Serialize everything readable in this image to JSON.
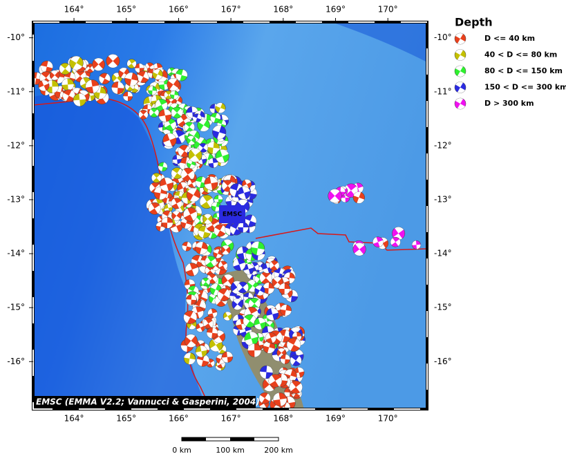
{
  "map": {
    "xlim": [
      163.22,
      170.75
    ],
    "ylim": [
      -9.71,
      -16.88
    ],
    "x_ticks": [
      {
        "value": 164,
        "label": "164°"
      },
      {
        "value": 165,
        "label": "165°"
      },
      {
        "value": 166,
        "label": "166°"
      },
      {
        "value": 167,
        "label": "167°"
      },
      {
        "value": 168,
        "label": "168°"
      },
      {
        "value": 169,
        "label": "169°"
      },
      {
        "value": 170,
        "label": "170°"
      }
    ],
    "y_ticks": [
      {
        "value": -10,
        "label": "-10°"
      },
      {
        "value": -11,
        "label": "-11°"
      },
      {
        "value": -12,
        "label": "-12°"
      },
      {
        "value": -13,
        "label": "-13°"
      },
      {
        "value": -14,
        "label": "-14°"
      },
      {
        "value": -15,
        "label": "-15°"
      },
      {
        "value": -16,
        "label": "-16°"
      }
    ],
    "center_label": "EMSC",
    "credit": "EMSC (EMMA V2.2; Vannucci & Gasperini, 2004)",
    "scale_labels": [
      "0 km",
      "100 km",
      "200 km"
    ]
  },
  "legend": {
    "title": "Depth",
    "entries": [
      {
        "label": "D <= 40 km",
        "color": "#e8401c"
      },
      {
        "label": "40 < D <= 80 km",
        "color": "#c4c000"
      },
      {
        "label": "80 < D <= 150 km",
        "color": "#2ff02f"
      },
      {
        "label": "150 < D <= 300 km",
        "color": "#2a2ae0"
      },
      {
        "label": "D > 300 km",
        "color": "#f010f0"
      }
    ]
  }
}
